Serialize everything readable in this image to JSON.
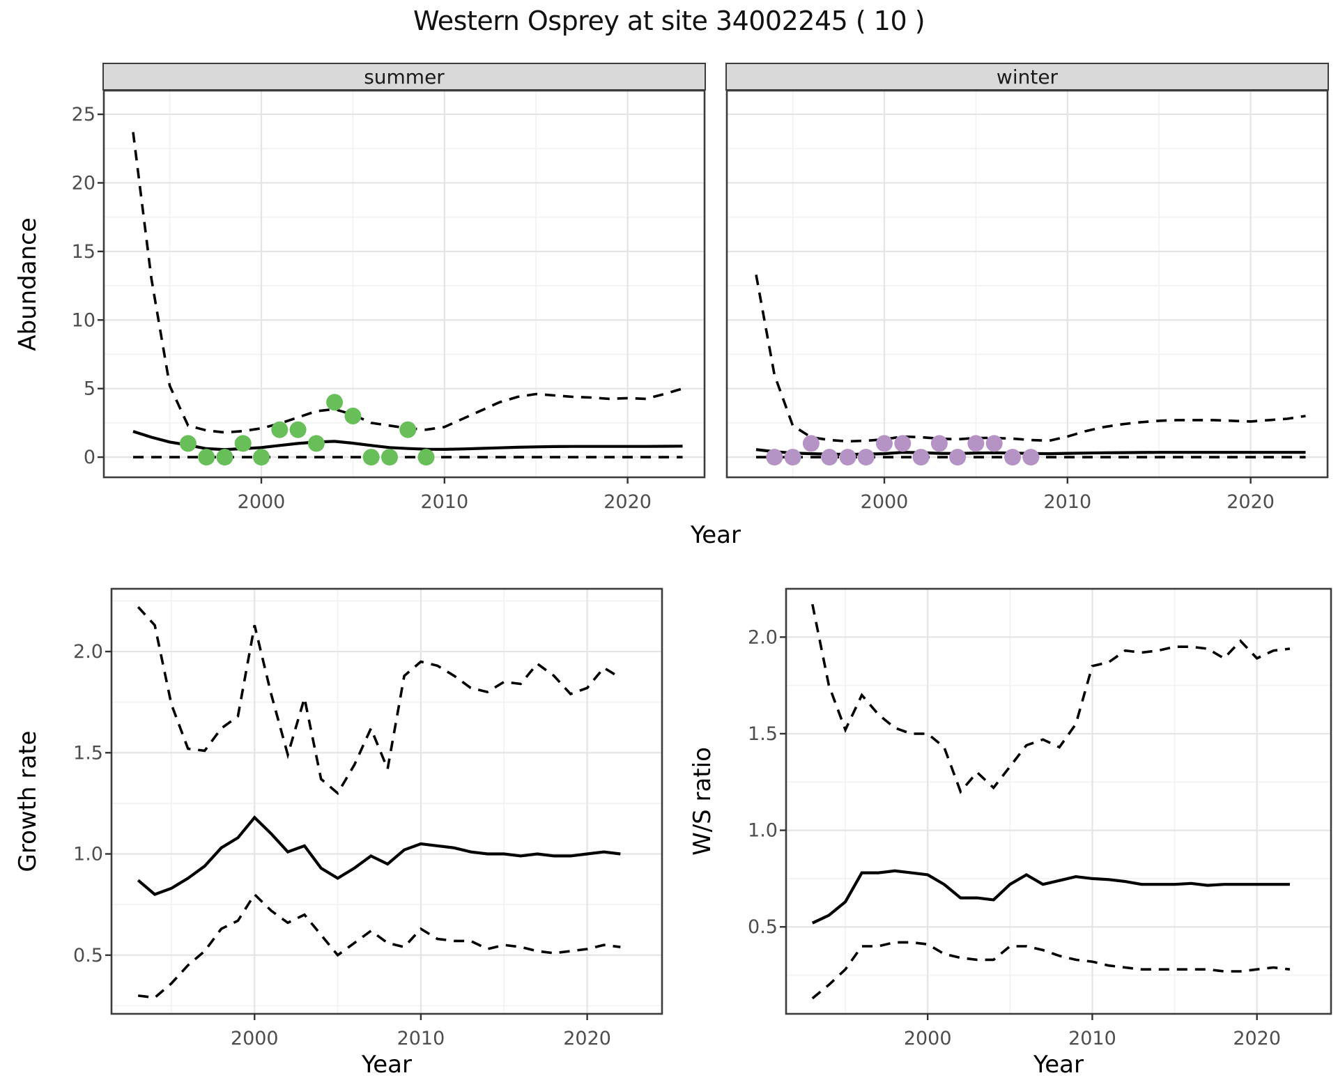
{
  "title": "Western Osprey at site 34002245 ( 10 )",
  "facets": [
    "summer",
    "winter"
  ],
  "labels": {
    "abundance": "Abundance",
    "growth_rate": "Growth rate",
    "ws_ratio": "W/S ratio",
    "year": "Year"
  },
  "colors": {
    "summer_points": "#68bf5a",
    "winter_points": "#b593c5",
    "line": "#000000",
    "strip_bg": "#d9d9d9",
    "panel_border": "#3c3c3c",
    "grid_major": "#e4e4e4",
    "grid_minor": "#f1f1f1",
    "tick_label": "#4d4d4d"
  },
  "chart_data": [
    {
      "id": "abundance-summer",
      "type": "line",
      "title": "summer",
      "xlabel": "Year",
      "ylabel": "Abundance",
      "xlim": [
        1991.4,
        2024.2
      ],
      "ylim": [
        -1.47,
        26.73
      ],
      "xticks": [
        2000,
        2010,
        2020
      ],
      "xtick_labels": [
        "2000",
        "2010",
        "2020"
      ],
      "ytick_values": [
        0,
        5,
        10,
        15,
        20,
        25
      ],
      "ytick_labels": [
        "0",
        "5",
        "10",
        "15",
        "20",
        "25"
      ],
      "xminor": [
        1995,
        2005,
        2015
      ],
      "yminor": [
        2.5,
        7.5,
        12.5,
        17.5,
        22.5
      ],
      "x": [
        1993,
        1994,
        1995,
        1996,
        1997,
        1998,
        1999,
        2000,
        2001,
        2002,
        2003,
        2004,
        2005,
        2006,
        2007,
        2008,
        2009,
        2010,
        2011,
        2012,
        2013,
        2014,
        2015,
        2016,
        2017,
        2018,
        2019,
        2020,
        2021,
        2022,
        2023
      ],
      "series": [
        {
          "name": "median",
          "style": "solid",
          "values": [
            1.88,
            1.45,
            1.1,
            0.88,
            0.62,
            0.55,
            0.62,
            0.7,
            0.85,
            1.0,
            1.1,
            1.15,
            1.02,
            0.85,
            0.7,
            0.63,
            0.58,
            0.57,
            0.6,
            0.64,
            0.68,
            0.72,
            0.75,
            0.77,
            0.78,
            0.78,
            0.78,
            0.78,
            0.78,
            0.79,
            0.8
          ]
        },
        {
          "name": "upper-ci",
          "style": "dashed",
          "values": [
            23.7,
            13.0,
            5.2,
            2.3,
            1.95,
            1.8,
            1.9,
            2.1,
            2.45,
            2.9,
            3.35,
            3.5,
            3.1,
            2.5,
            2.3,
            2.1,
            2.0,
            2.2,
            2.8,
            3.4,
            4.0,
            4.4,
            4.6,
            4.5,
            4.4,
            4.35,
            4.25,
            4.3,
            4.25,
            4.6,
            5.0
          ]
        },
        {
          "name": "lower-ci",
          "style": "dashed",
          "values": [
            0,
            0,
            0,
            0,
            0,
            0,
            0,
            0,
            0,
            0,
            0,
            0,
            0,
            0,
            0,
            0,
            0,
            0,
            0,
            0,
            0,
            0,
            0,
            0,
            0,
            0,
            0,
            0,
            0,
            0,
            0
          ]
        }
      ],
      "points": {
        "name": "summer-observations",
        "color_key": "summer_points",
        "years": [
          1996,
          1997,
          1998,
          1999,
          2000,
          2001,
          2002,
          2003,
          2004,
          2005,
          2006,
          2007,
          2008,
          2009
        ],
        "values": [
          1,
          0,
          0,
          1,
          0,
          2,
          2,
          1,
          4,
          3,
          0,
          0,
          2,
          0
        ]
      }
    },
    {
      "id": "abundance-winter",
      "type": "line",
      "title": "winter",
      "xlabel": "Year",
      "ylabel": "Abundance",
      "xlim": [
        1991.4,
        2024.2
      ],
      "ylim": [
        -1.47,
        26.73
      ],
      "xticks": [
        2000,
        2010,
        2020
      ],
      "xtick_labels": [
        "2000",
        "2010",
        "2020"
      ],
      "ytick_values": [
        0,
        5,
        10,
        15,
        20,
        25
      ],
      "ytick_labels": [
        "0",
        "5",
        "10",
        "15",
        "20",
        "25"
      ],
      "xminor": [
        1995,
        2005,
        2015
      ],
      "yminor": [
        2.5,
        7.5,
        12.5,
        17.5,
        22.5
      ],
      "x": [
        1993,
        1994,
        1995,
        1996,
        1997,
        1998,
        1999,
        2000,
        2001,
        2002,
        2003,
        2004,
        2005,
        2006,
        2007,
        2008,
        2009,
        2010,
        2011,
        2012,
        2013,
        2014,
        2015,
        2016,
        2017,
        2018,
        2019,
        2020,
        2021,
        2022,
        2023
      ],
      "series": [
        {
          "name": "median",
          "style": "solid",
          "values": [
            0.55,
            0.4,
            0.3,
            0.25,
            0.22,
            0.2,
            0.22,
            0.25,
            0.35,
            0.33,
            0.28,
            0.27,
            0.3,
            0.32,
            0.3,
            0.27,
            0.25,
            0.28,
            0.3,
            0.32,
            0.33,
            0.34,
            0.35,
            0.35,
            0.35,
            0.35,
            0.35,
            0.35,
            0.35,
            0.35,
            0.35
          ]
        },
        {
          "name": "upper-ci",
          "style": "dashed",
          "values": [
            13.3,
            6.0,
            2.3,
            1.45,
            1.25,
            1.15,
            1.2,
            1.3,
            1.5,
            1.45,
            1.35,
            1.3,
            1.4,
            1.4,
            1.35,
            1.25,
            1.2,
            1.5,
            1.9,
            2.2,
            2.4,
            2.55,
            2.65,
            2.7,
            2.7,
            2.7,
            2.65,
            2.6,
            2.7,
            2.8,
            3.0
          ]
        },
        {
          "name": "lower-ci",
          "style": "dashed",
          "values": [
            0,
            0,
            0,
            0,
            0,
            0,
            0,
            0,
            0,
            0,
            0,
            0,
            0,
            0,
            0,
            0,
            0,
            0,
            0,
            0,
            0,
            0,
            0,
            0,
            0,
            0,
            0,
            0,
            0,
            0,
            0
          ]
        }
      ],
      "points": {
        "name": "winter-observations",
        "color_key": "winter_points",
        "years": [
          1994,
          1995,
          1996,
          1997,
          1998,
          1999,
          2000,
          2001,
          2002,
          2003,
          2004,
          2005,
          2006,
          2007,
          2008
        ],
        "values": [
          0,
          0,
          1,
          0,
          0,
          0,
          1,
          1,
          0,
          1,
          0,
          1,
          1,
          0,
          0
        ]
      }
    },
    {
      "id": "growth-rate",
      "type": "line",
      "title": "",
      "xlabel": "Year",
      "ylabel": "Growth rate",
      "xlim": [
        1991.4,
        2024.5
      ],
      "ylim": [
        0.21,
        2.31
      ],
      "xticks": [
        2000,
        2010,
        2020
      ],
      "xtick_labels": [
        "2000",
        "2010",
        "2020"
      ],
      "ytick_values": [
        0.5,
        1.0,
        1.5,
        2.0
      ],
      "ytick_labels": [
        "0.5",
        "1.0",
        "1.5",
        "2.0"
      ],
      "xminor": [
        1995,
        2005,
        2015
      ],
      "yminor": [
        0.25,
        0.75,
        1.25,
        1.75,
        2.25
      ],
      "x": [
        1993,
        1994,
        1995,
        1996,
        1997,
        1998,
        1999,
        2000,
        2001,
        2002,
        2003,
        2004,
        2005,
        2006,
        2007,
        2008,
        2009,
        2010,
        2011,
        2012,
        2013,
        2014,
        2015,
        2016,
        2017,
        2018,
        2019,
        2020,
        2021,
        2022
      ],
      "series": [
        {
          "name": "median",
          "style": "solid",
          "values": [
            0.87,
            0.8,
            0.83,
            0.88,
            0.94,
            1.03,
            1.08,
            1.18,
            1.1,
            1.01,
            1.04,
            0.93,
            0.88,
            0.93,
            0.99,
            0.95,
            1.02,
            1.05,
            1.04,
            1.03,
            1.01,
            1.0,
            1.0,
            0.99,
            1.0,
            0.99,
            0.99,
            1.0,
            1.01,
            1.0
          ]
        },
        {
          "name": "upper-ci",
          "style": "dashed",
          "values": [
            2.22,
            2.13,
            1.74,
            1.52,
            1.51,
            1.62,
            1.68,
            2.13,
            1.79,
            1.49,
            1.77,
            1.37,
            1.3,
            1.44,
            1.62,
            1.42,
            1.88,
            1.95,
            1.93,
            1.88,
            1.82,
            1.8,
            1.85,
            1.84,
            1.94,
            1.88,
            1.79,
            1.82,
            1.92,
            1.87
          ]
        },
        {
          "name": "lower-ci",
          "style": "dashed",
          "values": [
            0.3,
            0.29,
            0.36,
            0.45,
            0.52,
            0.63,
            0.67,
            0.8,
            0.72,
            0.66,
            0.7,
            0.6,
            0.5,
            0.56,
            0.62,
            0.56,
            0.54,
            0.63,
            0.58,
            0.57,
            0.57,
            0.53,
            0.55,
            0.54,
            0.52,
            0.51,
            0.52,
            0.53,
            0.55,
            0.54
          ]
        }
      ]
    },
    {
      "id": "ws-ratio",
      "type": "line",
      "title": "",
      "xlabel": "Year",
      "ylabel": "W/S ratio",
      "xlim": [
        1991.4,
        2024.5
      ],
      "ylim": [
        0.05,
        2.25
      ],
      "xticks": [
        2000,
        2010,
        2020
      ],
      "xtick_labels": [
        "2000",
        "2010",
        "2020"
      ],
      "ytick_values": [
        0.5,
        1.0,
        1.5,
        2.0
      ],
      "ytick_labels": [
        "0.5",
        "1.0",
        "1.5",
        "2.0"
      ],
      "xminor": [
        1995,
        2005,
        2015
      ],
      "yminor": [
        0.25,
        0.75,
        1.25,
        1.75,
        2.25
      ],
      "x": [
        1993,
        1994,
        1995,
        1996,
        1997,
        1998,
        1999,
        2000,
        2001,
        2002,
        2003,
        2004,
        2005,
        2006,
        2007,
        2008,
        2009,
        2010,
        2011,
        2012,
        2013,
        2014,
        2015,
        2016,
        2017,
        2018,
        2019,
        2020,
        2021,
        2022
      ],
      "series": [
        {
          "name": "median",
          "style": "solid",
          "values": [
            0.52,
            0.56,
            0.63,
            0.78,
            0.78,
            0.79,
            0.78,
            0.77,
            0.72,
            0.65,
            0.65,
            0.64,
            0.72,
            0.77,
            0.72,
            0.74,
            0.76,
            0.75,
            0.745,
            0.735,
            0.72,
            0.72,
            0.72,
            0.725,
            0.715,
            0.72,
            0.72,
            0.72,
            0.72,
            0.72
          ]
        },
        {
          "name": "upper-ci",
          "style": "dashed",
          "values": [
            2.17,
            1.75,
            1.52,
            1.7,
            1.6,
            1.53,
            1.5,
            1.5,
            1.43,
            1.2,
            1.3,
            1.22,
            1.33,
            1.44,
            1.47,
            1.43,
            1.55,
            1.85,
            1.87,
            1.93,
            1.92,
            1.93,
            1.95,
            1.95,
            1.94,
            1.89,
            1.98,
            1.89,
            1.93,
            1.94
          ]
        },
        {
          "name": "lower-ci",
          "style": "dashed",
          "values": [
            0.13,
            0.2,
            0.28,
            0.4,
            0.4,
            0.42,
            0.42,
            0.41,
            0.36,
            0.34,
            0.33,
            0.33,
            0.4,
            0.4,
            0.38,
            0.35,
            0.33,
            0.32,
            0.3,
            0.29,
            0.28,
            0.28,
            0.28,
            0.28,
            0.28,
            0.27,
            0.27,
            0.28,
            0.29,
            0.28
          ]
        }
      ]
    }
  ]
}
